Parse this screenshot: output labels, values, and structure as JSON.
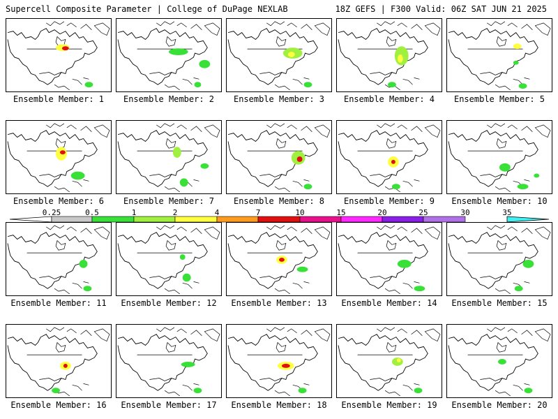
{
  "header": {
    "title": "Supercell Composite Parameter | College of DuPage NEXLAB",
    "run_info": "18Z GEFS | F300 Valid: 06Z SAT JUN 21 2025"
  },
  "colorbar": {
    "ticks": [
      "0.25",
      "0.5",
      "1",
      "2",
      "4",
      "7",
      "10",
      "15",
      "20",
      "25",
      "30",
      "35"
    ],
    "colors": [
      "#c8c8c8",
      "#38e038",
      "#a0f040",
      "#ffff40",
      "#ff9a20",
      "#e01010",
      "#e8108c",
      "#ff28ff",
      "#8a20e8",
      "#b070e8",
      "#40f0f0"
    ]
  },
  "panels": [
    {
      "label": "Ensemble Member: 1"
    },
    {
      "label": "Ensemble Member: 2"
    },
    {
      "label": "Ensemble Member: 3"
    },
    {
      "label": "Ensemble Member: 4"
    },
    {
      "label": "Ensemble Member: 5"
    },
    {
      "label": "Ensemble Member: 6"
    },
    {
      "label": "Ensemble Member: 7"
    },
    {
      "label": "Ensemble Member: 8"
    },
    {
      "label": "Ensemble Member: 9"
    },
    {
      "label": "Ensemble Member: 10"
    },
    {
      "label": "Ensemble Member: 11"
    },
    {
      "label": "Ensemble Member: 12"
    },
    {
      "label": "Ensemble Member: 13"
    },
    {
      "label": "Ensemble Member: 14"
    },
    {
      "label": "Ensemble Member: 15"
    },
    {
      "label": "Ensemble Member: 16"
    },
    {
      "label": "Ensemble Member: 17"
    },
    {
      "label": "Ensemble Member: 18"
    },
    {
      "label": "Ensemble Member: 19"
    },
    {
      "label": "Ensemble Member: 20"
    }
  ]
}
